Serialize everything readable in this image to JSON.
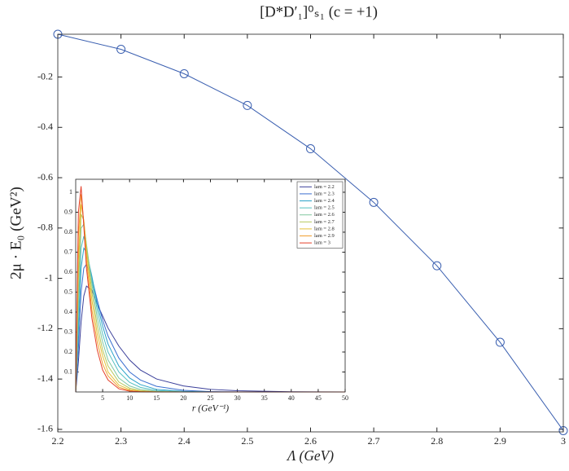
{
  "chart_data": [
    {
      "type": "line",
      "title": "[D*D′₁]⁰ₛ₁ (c = +1)",
      "xlabel": "Λ (GeV)",
      "ylabel": "2μ · E₀ (GeV²)",
      "x": [
        2.2,
        2.3,
        2.4,
        2.5,
        2.6,
        2.7,
        2.8,
        2.9,
        3
      ],
      "series": [
        {
          "color": "#3a5fb0",
          "marker": "circle",
          "values": [
            -0.03,
            -0.09,
            -0.187,
            -0.313,
            -0.485,
            -0.698,
            -0.95,
            -1.254,
            -1.605
          ]
        }
      ],
      "xlim": [
        2.2,
        3
      ],
      "xticks": [
        2.2,
        2.3,
        2.4,
        2.5,
        2.6,
        2.7,
        2.8,
        2.9,
        3
      ],
      "ylim": [
        -1.61,
        -0.03
      ],
      "yticks": [
        -0.2,
        -0.4,
        -0.6,
        -0.8,
        -1,
        -1.2,
        -1.4,
        -1.6
      ]
    },
    {
      "type": "line",
      "xlabel": "r (GeV⁻¹)",
      "legend": "upper right",
      "x": [
        0,
        0.5,
        1,
        1.5,
        2,
        3,
        4,
        5,
        6,
        8,
        10,
        12,
        15,
        20,
        25,
        30,
        40,
        50
      ],
      "series": [
        {
          "name": "lam = 2.2",
          "color": "#3a3f9a",
          "values": [
            0,
            0.15,
            0.35,
            0.48,
            0.53,
            0.51,
            0.44,
            0.38,
            0.32,
            0.23,
            0.16,
            0.11,
            0.065,
            0.03,
            0.013,
            0.006,
            0.001,
            0
          ]
        },
        {
          "name": "lam = 2.3",
          "color": "#3b6fd0",
          "values": [
            0,
            0.22,
            0.5,
            0.62,
            0.64,
            0.57,
            0.46,
            0.36,
            0.28,
            0.17,
            0.1,
            0.06,
            0.028,
            0.008,
            0.002,
            0,
            0,
            0
          ]
        },
        {
          "name": "lam = 2.4",
          "color": "#2ba3c9",
          "values": [
            0,
            0.3,
            0.62,
            0.72,
            0.7,
            0.58,
            0.44,
            0.33,
            0.24,
            0.13,
            0.07,
            0.037,
            0.013,
            0.003,
            0,
            0,
            0,
            0
          ]
        },
        {
          "name": "lam = 2.5",
          "color": "#53c0c0",
          "values": [
            0,
            0.38,
            0.72,
            0.78,
            0.72,
            0.56,
            0.41,
            0.29,
            0.2,
            0.1,
            0.048,
            0.023,
            0.007,
            0.001,
            0,
            0,
            0,
            0
          ]
        },
        {
          "name": "lam = 2.6",
          "color": "#80c8a0",
          "values": [
            0,
            0.46,
            0.82,
            0.84,
            0.74,
            0.54,
            0.37,
            0.25,
            0.16,
            0.07,
            0.03,
            0.013,
            0.003,
            0,
            0,
            0,
            0,
            0
          ]
        },
        {
          "name": "lam = 2.7",
          "color": "#b6c85a",
          "values": [
            0,
            0.56,
            0.89,
            0.86,
            0.73,
            0.5,
            0.33,
            0.21,
            0.13,
            0.05,
            0.019,
            0.007,
            0.001,
            0,
            0,
            0,
            0,
            0
          ]
        },
        {
          "name": "lam = 2.8",
          "color": "#e6c23a",
          "values": [
            0,
            0.66,
            0.94,
            0.86,
            0.7,
            0.46,
            0.29,
            0.18,
            0.1,
            0.035,
            0.012,
            0.004,
            0.001,
            0,
            0,
            0,
            0,
            0
          ]
        },
        {
          "name": "lam = 2.9",
          "color": "#f0a030",
          "values": [
            0,
            0.78,
            0.99,
            0.85,
            0.66,
            0.41,
            0.25,
            0.14,
            0.08,
            0.024,
            0.007,
            0.002,
            0,
            0,
            0,
            0,
            0,
            0
          ]
        },
        {
          "name": "lam = 3",
          "color": "#e5402a",
          "values": [
            0,
            0.9,
            1.03,
            0.83,
            0.62,
            0.37,
            0.21,
            0.11,
            0.06,
            0.016,
            0.004,
            0.001,
            0,
            0,
            0,
            0,
            0,
            0
          ]
        }
      ],
      "xlim": [
        0,
        50
      ],
      "xticks": [
        5,
        10,
        15,
        20,
        25,
        30,
        35,
        40,
        45,
        50
      ],
      "ylim": [
        0,
        1.065
      ],
      "yticks": [
        0.1,
        0.2,
        0.3,
        0.4,
        0.5,
        0.6,
        0.7,
        0.8,
        0.9,
        1
      ]
    }
  ]
}
